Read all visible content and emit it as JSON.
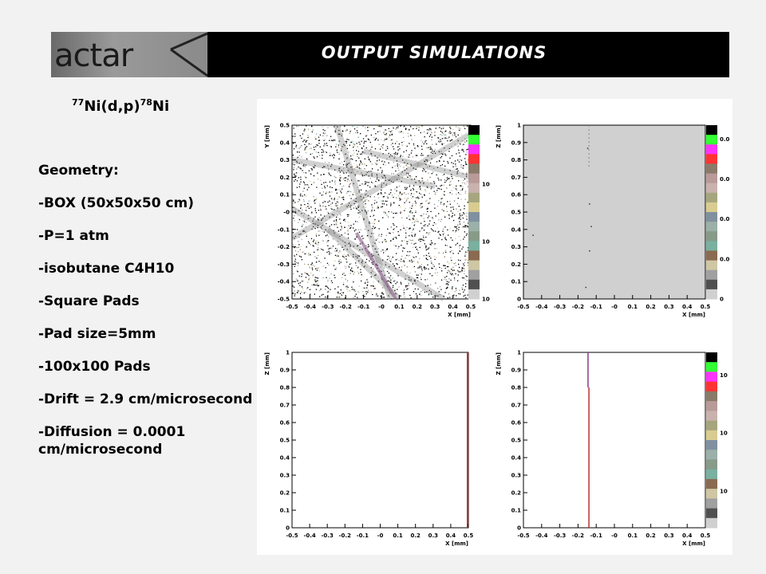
{
  "header": {
    "logo_text": "actar",
    "title": "OUTPUT SIMULATIONS"
  },
  "reaction": {
    "target_mass": "77",
    "target": "Ni(d,p)",
    "product_mass": "78",
    "product": "Ni"
  },
  "params": [
    "Geometry:",
    "-BOX (50x50x50 cm)",
    "-P=1 atm",
    "-isobutane C4H10",
    "-Square Pads",
    "-Pad size=5mm",
    "-100x100 Pads",
    "-Drift = 2.9 cm/microsecond",
    "-Diffusion = 0.0001 cm/microsecond"
  ],
  "colors": {
    "palette": [
      "#000000",
      "#33ff33",
      "#ff33ff",
      "#ff3333",
      "#8a7a6a",
      "#b89a98",
      "#c9b2ae",
      "#a6a67e",
      "#d8cc90",
      "#8090a0",
      "#9ab0a8",
      "#889a88",
      "#7ab0a0",
      "#8a6a50",
      "#cfc6a4",
      "#a0a0a0",
      "#505050",
      "#d0d0d0"
    ]
  },
  "chart_data": [
    {
      "type": "heatmap",
      "panel": "top-left",
      "xlabel": "X [mm]",
      "ylabel": "Y [mm]",
      "xlim": [
        -0.5,
        0.5
      ],
      "ylim": [
        -0.5,
        0.5
      ],
      "xticks": [
        "-0.5",
        "-0.4",
        "-0.3",
        "-0.2",
        "-0.1",
        "-0",
        "0.1",
        "0.2",
        "0.3",
        "0.4",
        "0.5"
      ],
      "yticks": [
        "-0.5",
        "-0.4",
        "-0.3",
        "-0.2",
        "-0.1",
        "-0",
        "0.1",
        "0.2",
        "0.3",
        "0.4",
        "0.5"
      ],
      "zticks": [
        "10",
        "10",
        "10"
      ]
    },
    {
      "type": "heatmap",
      "panel": "top-right",
      "xlabel": "X [mm]",
      "ylabel": "Z [mm]",
      "xlim": [
        -0.5,
        0.5
      ],
      "ylim": [
        0,
        1
      ],
      "xticks": [
        "-0.5",
        "-0.4",
        "-0.3",
        "-0.2",
        "-0.1",
        "-0",
        "0.1",
        "0.2",
        "0.3",
        "0.4",
        "0.5"
      ],
      "yticks": [
        "0",
        "0.1",
        "0.2",
        "0.3",
        "0.4",
        "0.5",
        "0.6",
        "0.7",
        "0.8",
        "0.9",
        "1"
      ],
      "zticks": [
        "0.0",
        "0.0",
        "0.0",
        "0.0",
        "0"
      ]
    },
    {
      "type": "heatmap",
      "panel": "bottom-left",
      "xlabel": "X [mm]",
      "ylabel": "Z [mm]",
      "xlim": [
        -0.5,
        0.5
      ],
      "ylim": [
        0,
        1
      ],
      "xticks": [
        "-0.5",
        "-0.4",
        "-0.3",
        "-0.2",
        "-0.1",
        "-0",
        "0.1",
        "0.2",
        "0.3",
        "0.4",
        "0.5"
      ],
      "yticks": [
        "0",
        "0.1",
        "0.2",
        "0.3",
        "0.4",
        "0.5",
        "0.6",
        "0.7",
        "0.8",
        "0.9",
        "1"
      ],
      "zticks": []
    },
    {
      "type": "heatmap",
      "panel": "bottom-right",
      "xlabel": "X [mm]",
      "ylabel": "Z [mm]",
      "xlim": [
        -0.5,
        0.5
      ],
      "ylim": [
        0,
        1
      ],
      "xticks": [
        "-0.5",
        "-0.4",
        "-0.3",
        "-0.2",
        "-0.1",
        "-0",
        "0.1",
        "0.2",
        "0.3",
        "0.4",
        "0.5"
      ],
      "yticks": [
        "0",
        "0.1",
        "0.2",
        "0.3",
        "0.4",
        "0.5",
        "0.6",
        "0.7",
        "0.8",
        "0.9",
        "1"
      ],
      "zticks": [
        "10",
        "10",
        "10"
      ]
    }
  ]
}
